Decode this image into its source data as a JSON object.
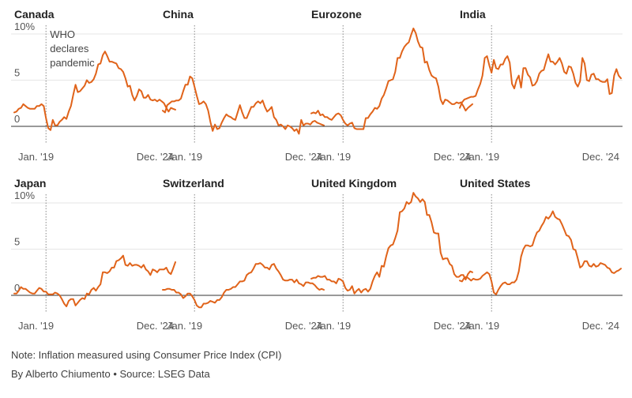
{
  "chart_data": [
    {
      "type": "line",
      "title": "Canada",
      "x_start_label": "Jan. '19",
      "x_end_label": "Dec. '24",
      "y_ticks": [
        "10%",
        "5",
        "0"
      ],
      "y_tick_values": [
        10,
        5,
        0
      ],
      "ylim": [
        -1.5,
        11
      ],
      "event_label": [
        "WHO",
        "declares",
        "pandemic"
      ],
      "event_index": 14,
      "values": [
        1.5,
        1.6,
        1.9,
        2.0,
        2.4,
        2.2,
        2.0,
        1.9,
        1.9,
        1.9,
        2.2,
        2.2,
        2.4,
        2.2,
        0.9,
        -0.2,
        -0.4,
        0.7,
        0.1,
        0.1,
        0.5,
        0.7,
        1.0,
        0.8,
        1.6,
        2.2,
        3.4,
        4.5,
        3.7,
        3.8,
        4.1,
        4.4,
        5.0,
        4.7,
        4.8,
        5.1,
        5.7,
        6.7,
        6.8,
        7.7,
        8.1,
        7.6,
        7.0,
        7.0,
        6.9,
        6.8,
        6.3,
        6.2,
        5.9,
        5.2,
        4.3,
        4.4,
        3.4,
        2.8,
        3.3,
        4.0,
        3.8,
        3.1,
        3.1,
        3.4,
        2.9,
        2.8,
        2.9,
        2.7,
        2.9,
        2.7,
        2.5,
        2.0,
        1.6,
        2.0,
        1.9,
        1.8
      ]
    },
    {
      "type": "line",
      "title": "China",
      "x_start_label": "Jan. '19",
      "x_end_label": "Dec. '24",
      "y_ticks": [],
      "y_tick_values": [],
      "ylim": [
        -1.5,
        11
      ],
      "event_index": 14,
      "values": [
        1.7,
        1.5,
        2.3,
        2.5,
        2.7,
        2.7,
        2.8,
        2.8,
        3.0,
        3.8,
        4.5,
        4.5,
        5.4,
        5.2,
        4.3,
        3.3,
        2.4,
        2.5,
        2.7,
        2.4,
        1.7,
        0.5,
        -0.5,
        0.2,
        -0.3,
        -0.2,
        0.4,
        0.9,
        1.3,
        1.1,
        1.0,
        0.8,
        0.7,
        1.5,
        2.3,
        1.5,
        0.9,
        0.9,
        1.5,
        2.1,
        2.1,
        2.5,
        2.7,
        2.5,
        2.8,
        2.1,
        1.6,
        1.8,
        2.1,
        1.0,
        0.7,
        0.1,
        0.2,
        0.0,
        -0.3,
        0.1,
        0.0,
        -0.2,
        -0.5,
        -0.3,
        -0.8,
        0.7,
        0.1,
        0.3,
        0.3,
        0.2,
        0.5,
        0.6,
        0.4,
        0.3,
        0.2,
        0.1
      ]
    },
    {
      "type": "line",
      "title": "Eurozone",
      "x_start_label": "Jan. '19",
      "x_end_label": "Dec. '24",
      "y_ticks": [],
      "y_tick_values": [],
      "ylim": [
        -1.5,
        11
      ],
      "event_index": 14,
      "values": [
        1.4,
        1.5,
        1.4,
        1.7,
        1.2,
        1.3,
        1.0,
        1.0,
        0.8,
        0.7,
        1.0,
        1.3,
        1.4,
        1.2,
        0.7,
        0.3,
        0.1,
        0.3,
        0.4,
        -0.2,
        -0.3,
        -0.3,
        -0.3,
        -0.3,
        0.9,
        0.9,
        1.3,
        1.6,
        2.0,
        1.9,
        2.2,
        3.0,
        3.4,
        4.1,
        4.9,
        5.0,
        5.1,
        5.9,
        7.4,
        7.4,
        8.1,
        8.6,
        8.9,
        9.1,
        9.9,
        10.6,
        10.1,
        9.2,
        8.6,
        8.5,
        6.9,
        7.0,
        6.1,
        5.5,
        5.3,
        5.2,
        4.3,
        2.9,
        2.4,
        2.9,
        2.8,
        2.6,
        2.4,
        2.4,
        2.6,
        2.5,
        2.6,
        2.2,
        1.7,
        2.0,
        2.2,
        2.4
      ]
    },
    {
      "type": "line",
      "title": "India",
      "x_start_label": "Jan. '19",
      "x_end_label": "Dec. '24",
      "y_ticks": [],
      "y_tick_values": [],
      "ylim": [
        -1.5,
        11
      ],
      "event_index": 14,
      "values": [
        2.0,
        2.6,
        2.9,
        3.0,
        3.1,
        3.2,
        3.2,
        3.3,
        4.0,
        4.6,
        5.5,
        7.4,
        7.6,
        6.6,
        5.8,
        7.2,
        6.3,
        6.2,
        6.7,
        6.7,
        7.3,
        7.6,
        6.9,
        4.6,
        4.1,
        5.0,
        5.5,
        4.2,
        6.3,
        6.3,
        5.6,
        5.3,
        4.4,
        4.5,
        4.9,
        5.7,
        6.0,
        6.1,
        7.0,
        7.8,
        7.0,
        7.0,
        6.7,
        7.0,
        7.4,
        6.8,
        5.9,
        5.7,
        6.5,
        6.4,
        5.7,
        4.7,
        4.3,
        4.9,
        7.4,
        6.8,
        5.0,
        4.9,
        5.6,
        5.7,
        5.1,
        5.1,
        4.9,
        4.8,
        4.8,
        5.1,
        3.5,
        3.6,
        5.5,
        6.2,
        5.5,
        5.2
      ]
    },
    {
      "type": "line",
      "title": "Japan",
      "x_start_label": "Jan. '19",
      "x_end_label": "Dec. '24",
      "y_ticks": [
        "10%",
        "5",
        "0"
      ],
      "y_tick_values": [
        10,
        5,
        0
      ],
      "ylim": [
        -1.5,
        11
      ],
      "event_index": 14,
      "values": [
        0.2,
        0.2,
        0.5,
        0.9,
        0.7,
        0.7,
        0.5,
        0.3,
        0.2,
        0.2,
        0.5,
        0.8,
        0.7,
        0.4,
        0.4,
        0.1,
        0.1,
        0.1,
        0.3,
        0.2,
        0.0,
        -0.4,
        -0.9,
        -1.2,
        -0.6,
        -0.4,
        -0.4,
        -1.1,
        -0.8,
        -0.5,
        -0.3,
        -0.4,
        0.2,
        0.1,
        0.6,
        0.8,
        0.5,
        0.9,
        1.2,
        2.5,
        2.5,
        2.4,
        2.6,
        3.0,
        3.0,
        3.7,
        3.8,
        4.0,
        4.3,
        3.3,
        3.2,
        3.5,
        3.2,
        3.3,
        3.3,
        3.2,
        3.0,
        3.3,
        2.8,
        2.6,
        2.2,
        2.8,
        2.7,
        2.5,
        2.8,
        2.8,
        2.8,
        3.0,
        2.5,
        2.3,
        2.9,
        3.6
      ]
    },
    {
      "type": "line",
      "title": "Switzerland",
      "x_start_label": "Jan. '19",
      "x_end_label": "Dec. '24",
      "y_ticks": [],
      "y_tick_values": [],
      "ylim": [
        -1.5,
        11
      ],
      "event_index": 14,
      "values": [
        0.6,
        0.6,
        0.7,
        0.7,
        0.6,
        0.6,
        0.3,
        0.3,
        0.1,
        -0.3,
        -0.1,
        0.2,
        0.2,
        -0.1,
        -0.5,
        -1.1,
        -1.3,
        -1.3,
        -0.9,
        -0.9,
        -0.8,
        -0.6,
        -0.7,
        -0.8,
        -0.5,
        -0.5,
        -0.2,
        0.3,
        0.6,
        0.6,
        0.7,
        0.9,
        0.9,
        1.2,
        1.5,
        1.5,
        1.6,
        2.2,
        2.4,
        2.5,
        2.9,
        3.4,
        3.4,
        3.5,
        3.3,
        3.0,
        3.0,
        2.8,
        3.3,
        3.4,
        2.9,
        2.6,
        2.2,
        1.7,
        1.6,
        1.6,
        1.7,
        1.7,
        1.4,
        1.7,
        1.3,
        1.2,
        1.0,
        1.4,
        1.4,
        1.3,
        1.3,
        1.1,
        0.8,
        0.6,
        0.7,
        0.6
      ]
    },
    {
      "type": "line",
      "title": "United Kingdom",
      "x_start_label": "Jan. '19",
      "x_end_label": "Dec. '24",
      "y_ticks": [],
      "y_tick_values": [],
      "ylim": [
        -1.5,
        11
      ],
      "event_index": 14,
      "values": [
        1.8,
        1.9,
        1.9,
        2.1,
        2.0,
        2.0,
        2.1,
        1.7,
        1.7,
        1.5,
        1.5,
        1.3,
        1.8,
        1.7,
        1.5,
        0.8,
        0.5,
        0.6,
        1.0,
        0.2,
        0.5,
        0.7,
        0.3,
        0.6,
        0.7,
        0.4,
        0.7,
        1.5,
        2.1,
        2.5,
        2.0,
        3.2,
        3.1,
        4.2,
        5.1,
        5.4,
        5.5,
        6.2,
        7.0,
        9.0,
        9.1,
        9.4,
        10.1,
        9.9,
        10.1,
        11.1,
        10.7,
        10.5,
        10.1,
        10.4,
        10.1,
        8.7,
        8.7,
        7.9,
        6.8,
        6.7,
        6.7,
        4.6,
        3.9,
        4.0,
        4.0,
        3.4,
        3.2,
        2.3,
        2.0,
        2.0,
        2.2,
        2.2,
        1.7,
        2.3,
        2.6,
        2.5
      ]
    },
    {
      "type": "line",
      "title": "United States",
      "x_start_label": "Jan. '19",
      "x_end_label": "Dec. '24",
      "y_ticks": [],
      "y_tick_values": [],
      "ylim": [
        -1.5,
        11
      ],
      "event_index": 14,
      "values": [
        1.6,
        1.5,
        1.9,
        2.0,
        1.8,
        1.6,
        1.8,
        1.7,
        1.7,
        1.8,
        2.1,
        2.3,
        2.5,
        2.3,
        1.5,
        0.3,
        0.1,
        0.6,
        1.0,
        1.3,
        1.4,
        1.2,
        1.2,
        1.4,
        1.4,
        1.7,
        2.6,
        4.2,
        5.0,
        5.4,
        5.4,
        5.3,
        5.4,
        6.2,
        6.8,
        7.0,
        7.5,
        7.9,
        8.5,
        8.3,
        8.6,
        9.1,
        8.5,
        8.3,
        8.2,
        7.7,
        7.1,
        6.5,
        6.4,
        6.0,
        5.0,
        4.9,
        4.0,
        3.0,
        3.2,
        3.7,
        3.7,
        3.2,
        3.1,
        3.4,
        3.1,
        3.2,
        3.5,
        3.4,
        3.3,
        3.0,
        2.9,
        2.5,
        2.4,
        2.6,
        2.7,
        2.9
      ]
    }
  ],
  "colors": {
    "line": "#e0631a",
    "baseline": "#333333",
    "grid": "#e5e5e5",
    "event": "#888888",
    "text": "#404040",
    "title": "#222222"
  },
  "footer": {
    "note": "Note: Inflation measured using Consumer Price Index (CPI)",
    "credit": "By Alberto Chiumento • Source: LSEG Data"
  }
}
